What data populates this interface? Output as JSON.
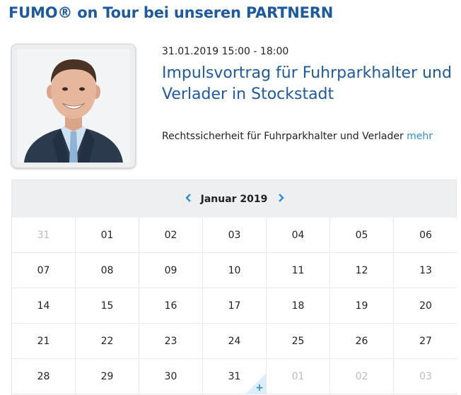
{
  "header": {
    "title": "FUMO® on Tour bei unseren PARTNERN"
  },
  "event": {
    "datetime": "31.01.2019 15:00 - 18:00",
    "title": "Impulsvortrag für Fuhrparkhalter und Verlader in Stockstadt",
    "description": "Rechtssicherheit für Fuhrparkhalter und Verlader",
    "more_label": "mehr"
  },
  "calendar": {
    "month_label": "Januar 2019",
    "accent_color": "#2e8fd0",
    "weeks": [
      [
        {
          "d": "31",
          "other": true
        },
        {
          "d": "01"
        },
        {
          "d": "02"
        },
        {
          "d": "03"
        },
        {
          "d": "04"
        },
        {
          "d": "05"
        },
        {
          "d": "06"
        }
      ],
      [
        {
          "d": "07"
        },
        {
          "d": "08"
        },
        {
          "d": "09"
        },
        {
          "d": "10"
        },
        {
          "d": "11"
        },
        {
          "d": "12"
        },
        {
          "d": "13"
        }
      ],
      [
        {
          "d": "14"
        },
        {
          "d": "15"
        },
        {
          "d": "16"
        },
        {
          "d": "17"
        },
        {
          "d": "18"
        },
        {
          "d": "19"
        },
        {
          "d": "20"
        }
      ],
      [
        {
          "d": "21"
        },
        {
          "d": "22"
        },
        {
          "d": "23"
        },
        {
          "d": "24"
        },
        {
          "d": "25"
        },
        {
          "d": "26"
        },
        {
          "d": "27"
        }
      ],
      [
        {
          "d": "28"
        },
        {
          "d": "29"
        },
        {
          "d": "30"
        },
        {
          "d": "31",
          "event": true
        },
        {
          "d": "01",
          "other": true
        },
        {
          "d": "02",
          "other": true
        },
        {
          "d": "03",
          "other": true
        }
      ]
    ]
  }
}
